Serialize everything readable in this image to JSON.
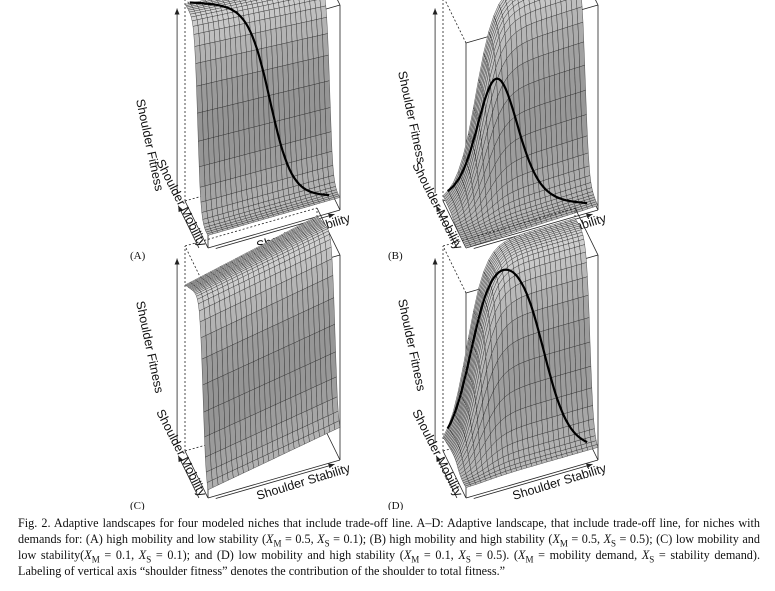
{
  "panels": [
    {
      "id": "A",
      "label": "(A)",
      "z_label": "Shoulder Fitness",
      "y_label": "Shoulder Mobility",
      "x_label": "Shoulder Stability",
      "demand_mobility": 0.5,
      "demand_stability": 0.1
    },
    {
      "id": "B",
      "label": "(B)",
      "z_label": "Shoulder Fitness",
      "y_label": "Shoulder Mobility",
      "x_label": "Shoulder Stability",
      "demand_mobility": 0.5,
      "demand_stability": 0.5
    },
    {
      "id": "C",
      "label": "(C)",
      "z_label": "Shoulder Fitness",
      "y_label": "Shoulder Mobility",
      "x_label": "Shoulder Stability",
      "demand_mobility": 0.1,
      "demand_stability": 0.1
    },
    {
      "id": "D",
      "label": "(D)",
      "z_label": "Shoulder Fitness",
      "y_label": "Shoulder Mobility",
      "x_label": "Shoulder Stability",
      "demand_mobility": 0.1,
      "demand_stability": 0.5
    }
  ],
  "caption": {
    "p1": "Fig. 2. Adaptive landscapes for four modeled niches that include trade-off line. A–D: Adaptive landscape, that include trade-off line, for niches with demands for: (A) high mobility and low stability (",
    "p2": " = 0.5, ",
    "p3": " = 0.1); (B) high mobility and high stability (",
    "p4": " = 0.5, ",
    "p5": " = 0.5); (C) low mobility and low stability(",
    "p6": " = 0.1, ",
    "p7": " = 0.1); and (D) low mobility and high stability (",
    "p8": " = 0.1, ",
    "p9": " = 0.5). (",
    "p10": " = mobility demand, ",
    "p11": " = stability demand). Labeling of vertical axis “shoulder fitness” denotes the contribution of the shoulder to total fitness.”",
    "var": "X",
    "sub_m": "M",
    "sub_s": "S"
  }
}
